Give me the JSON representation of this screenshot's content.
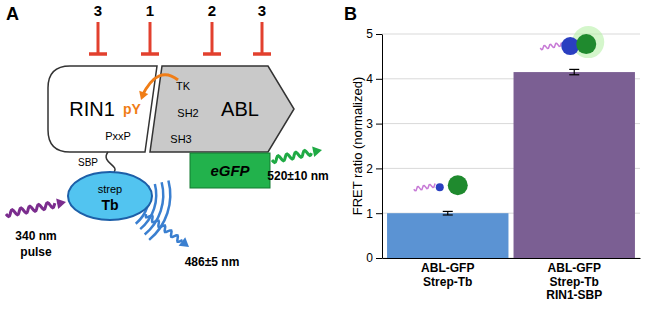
{
  "diagram": {
    "panel_label": "A",
    "inhibitors": [
      "3",
      "1",
      "2",
      "3"
    ],
    "rin1": {
      "label": "RIN1",
      "motif": "PxxP",
      "phospho": "pY",
      "tag": "SBP"
    },
    "abl": {
      "label": "ABL",
      "domains": [
        "TK",
        "SH2",
        "SH3"
      ],
      "fusion": "eGFP"
    },
    "donor": {
      "label": [
        "strep",
        "Tb"
      ]
    },
    "excitation": [
      "340 nm",
      "pulse"
    ],
    "donor_emission": "486±5 nm",
    "acceptor_emission": "520±10 nm"
  },
  "chart_data": {
    "type": "bar",
    "panel_label": "B",
    "y_label": "FRET ratio (normalized)",
    "categories": [
      "ABL-GFP\nStrep-Tb",
      "ABL-GFP\nStrep-Tb\nRIN1-SBP"
    ],
    "values": [
      1.0,
      4.15
    ],
    "errors": [
      0.04,
      0.06
    ],
    "colors": [
      "#5b93d3",
      "#7b5f93"
    ],
    "ylim": [
      0,
      5
    ],
    "yticks": [
      0,
      1,
      2,
      3,
      4,
      5
    ],
    "grid": true
  }
}
